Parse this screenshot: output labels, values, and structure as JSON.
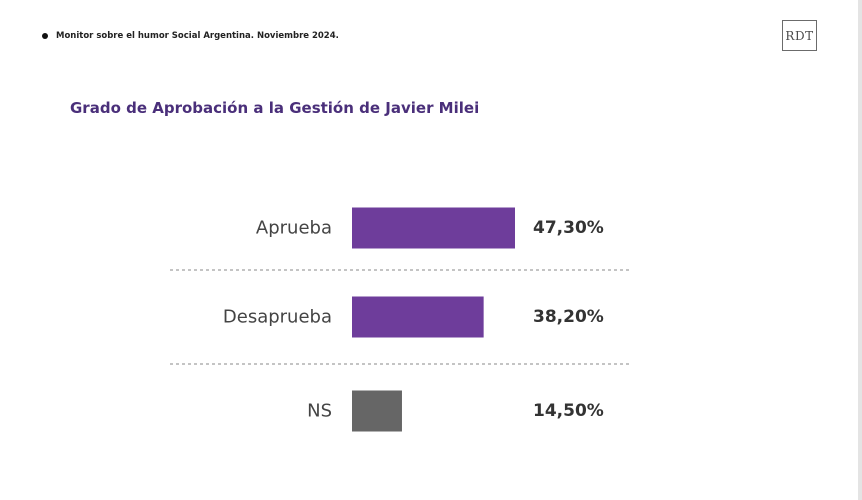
{
  "header": {
    "subtitle": "Monitor sobre el humor Social Argentina. Noviembre 2024."
  },
  "logo": {
    "text": "RDT"
  },
  "chart_data": {
    "type": "bar",
    "orientation": "horizontal",
    "title": "Grado de Aprobación a la Gestión de Javier Milei",
    "categories": [
      "Aprueba",
      "Desaprueba",
      "NS"
    ],
    "values": [
      47.3,
      38.2,
      14.5
    ],
    "value_labels": [
      "47,30%",
      "38,20%",
      "14,50%"
    ],
    "colors": [
      "#6e3d9b",
      "#6e3d9b",
      "#666666"
    ],
    "xlim": [
      0,
      100
    ],
    "grid": false,
    "separators": "dashed"
  }
}
